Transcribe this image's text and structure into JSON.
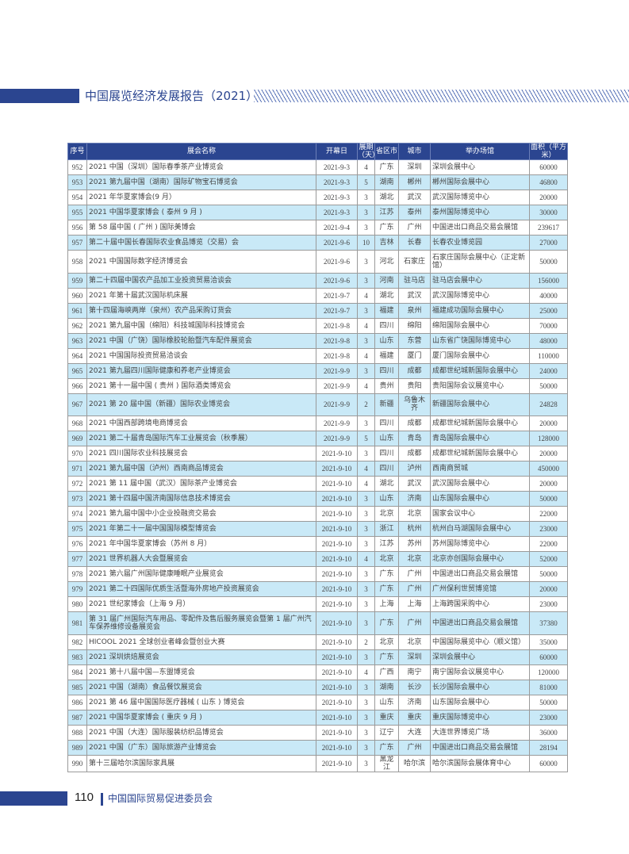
{
  "header": {
    "title": "中国展览经济发展报告（2021）"
  },
  "footer": {
    "page_number": "110",
    "org": "中国国际贸易促进委员会"
  },
  "colors": {
    "brand": "#2b4590",
    "row_alt": "#c9e9f7"
  },
  "table": {
    "columns": [
      "序号",
      "展会名称",
      "开幕日",
      "展期（天）",
      "省区市",
      "城市",
      "举办场馆",
      "面积（平方米）"
    ],
    "rows": [
      [
        "952",
        "2021 中国（深圳）国际春季茶产业博览会",
        "2021-9-3",
        "4",
        "广东",
        "深圳",
        "深圳会展中心",
        "60000"
      ],
      [
        "953",
        "2021 第九届中国（湖南）国际矿物宝石博览会",
        "2021-9-3",
        "5",
        "湖南",
        "郴州",
        "郴州国际会展中心",
        "46800"
      ],
      [
        "954",
        "2021 年华夏家博会(9 月）",
        "2021-9-3",
        "3",
        "湖北",
        "武汉",
        "武汉国际博览中心",
        "20000"
      ],
      [
        "955",
        "2021 中国华夏家博会 ( 泰州 9 月 )",
        "2021-9-3",
        "3",
        "江苏",
        "泰州",
        "泰州国际博览中心",
        "30000"
      ],
      [
        "956",
        "第 58 届中国 ( 广州 ) 国际美博会",
        "2021-9-4",
        "3",
        "广东",
        "广州",
        "中国进出口商品交易会展馆",
        "239617"
      ],
      [
        "957",
        "第二十届中国长春国际农业食品博览（交易）会",
        "2021-9-6",
        "10",
        "吉林",
        "长春",
        "长春农业博览园",
        "27000"
      ],
      [
        "958",
        "2021 中国国际数字经济博览会",
        "2021-9-6",
        "3",
        "河北",
        "石家庄",
        "石家庄国际会展中心（正定新馆）",
        "50000"
      ],
      [
        "959",
        "第二十四届中国农产品加工业投资贸易洽谈会",
        "2021-9-6",
        "3",
        "河南",
        "驻马店",
        "驻马店会展中心",
        "156000"
      ],
      [
        "960",
        "2021 年第十届武汉国际机床展",
        "2021-9-7",
        "4",
        "湖北",
        "武汉",
        "武汉国际博览中心",
        "40000"
      ],
      [
        "961",
        "第十四届海峡两岸（泉州）农产品采购订货会",
        "2021-9-7",
        "3",
        "福建",
        "泉州",
        "福建成功国际会展中心",
        "25000"
      ],
      [
        "962",
        "2021 第九届中国（绵阳）科技城国际科技博览会",
        "2021-9-8",
        "4",
        "四川",
        "绵阳",
        "绵阳国际会展中心",
        "70000"
      ],
      [
        "963",
        "2021 中国（广饶）国际橡胶轮胎暨汽车配件展览会",
        "2021-9-8",
        "3",
        "山东",
        "东营",
        "山东省广饶国际博览中心",
        "48000"
      ],
      [
        "964",
        "2021 中国国际投资贸易洽谈会",
        "2021-9-8",
        "4",
        "福建",
        "厦门",
        "厦门国际会展中心",
        "110000"
      ],
      [
        "965",
        "2021 第九届四川国际健康和养老产业博览会",
        "2021-9-9",
        "3",
        "四川",
        "成都",
        "成都世纪城新国际会展中心",
        "24000"
      ],
      [
        "966",
        "2021 第十一届中国 ( 贵州 ) 国际酒类博览会",
        "2021-9-9",
        "4",
        "贵州",
        "贵阳",
        "贵阳国际会议展览中心",
        "50000"
      ],
      [
        "967",
        "2021 第 20 届中国（新疆）国际农业博览会",
        "2021-9-9",
        "2",
        "新疆",
        "乌鲁木齐",
        "新疆国际会展中心",
        "24828"
      ],
      [
        "968",
        "2021 中国西部跨境电商博览会",
        "2021-9-9",
        "3",
        "四川",
        "成都",
        "成都世纪城新国际会展中心",
        "20000"
      ],
      [
        "969",
        "2021 第二十届青岛国际汽车工业展览会（秋季展）",
        "2021-9-9",
        "5",
        "山东",
        "青岛",
        "青岛国际会展中心",
        "128000"
      ],
      [
        "970",
        "2021 四川国际农业科技展览会",
        "2021-9-10",
        "3",
        "四川",
        "成都",
        "成都世纪城新国际会展中心",
        "20000"
      ],
      [
        "971",
        "2021 第九届中国（泸州）西南商品博览会",
        "2021-9-10",
        "4",
        "四川",
        "泸州",
        "西南商贸城",
        "450000"
      ],
      [
        "972",
        "2021 第 11 届中国（武汉）国际茶产业博览会",
        "2021-9-10",
        "4",
        "湖北",
        "武汉",
        "武汉国际会展中心",
        "20000"
      ],
      [
        "973",
        "2021 第十四届中国济南国际信息技术博览会",
        "2021-9-10",
        "3",
        "山东",
        "济南",
        "山东国际会展中心",
        "50000"
      ],
      [
        "974",
        "2021 第九届中国中小企业投融资交易会",
        "2021-9-10",
        "3",
        "北京",
        "北京",
        "国家会议中心",
        "22000"
      ],
      [
        "975",
        "2021 年第二十一届中国国际模型博览会",
        "2021-9-10",
        "3",
        "浙江",
        "杭州",
        "杭州白马湖国际会展中心",
        "23000"
      ],
      [
        "976",
        "2021 年中国华夏家博会（苏州 8 月）",
        "2021-9-10",
        "3",
        "江苏",
        "苏州",
        "苏州国际博览中心",
        "22000"
      ],
      [
        "977",
        "2021 世界机器人大会暨展览会",
        "2021-9-10",
        "4",
        "北京",
        "北京",
        "北京亦创国际会展中心",
        "52000"
      ],
      [
        "978",
        "2021 第六届广州国际健康睡眠产业展览会",
        "2021-9-10",
        "3",
        "广东",
        "广州",
        "中国进出口商品交易会展馆",
        "50000"
      ],
      [
        "979",
        "2021 第二十四国际优质生活暨海外房地产投资展览会",
        "2021-9-10",
        "3",
        "广东",
        "广州",
        "广州保利世贸博览馆",
        "20000"
      ],
      [
        "980",
        "2021 世纪家博会（上海 9 月）",
        "2021-9-10",
        "3",
        "上海",
        "上海",
        "上海跨国采购中心",
        "23000"
      ],
      [
        "981",
        "第 31 届广州国际汽车用品、零配件及售后服务展览会暨第 1 届广州汽车保养维修设备展览会",
        "2021-9-10",
        "3",
        "广东",
        "广州",
        "中国进出口商品交易会展馆",
        "37380"
      ],
      [
        "982",
        "HICOOL 2021 全球创业者峰会暨创业大赛",
        "2021-9-10",
        "2",
        "北京",
        "北京",
        "中国国际展览中心（顺义馆）",
        "35000"
      ],
      [
        "983",
        "2021 深圳烘焙展览会",
        "2021-9-10",
        "3",
        "广东",
        "深圳",
        "深圳会展中心",
        "60000"
      ],
      [
        "984",
        "2021 第十八届中国—东盟博览会",
        "2021-9-10",
        "4",
        "广西",
        "南宁",
        "南宁国际会议展览中心",
        "120000"
      ],
      [
        "985",
        "2021 中国（湖南）食品餐饮展览会",
        "2021-9-10",
        "3",
        "湖南",
        "长沙",
        "长沙国际会展中心",
        "81000"
      ],
      [
        "986",
        "2021 第 46 届中国国际医疗器械 ( 山东 ) 博览会",
        "2021-9-10",
        "3",
        "山东",
        "济南",
        "山东国际会展中心",
        "50000"
      ],
      [
        "987",
        "2021 中国华夏家博会 ( 重庆 9 月 )",
        "2021-9-10",
        "3",
        "重庆",
        "重庆",
        "重庆国际博览中心",
        "23000"
      ],
      [
        "988",
        "2021 中国（大连）国际服装纺织品博览会",
        "2021-9-10",
        "3",
        "辽宁",
        "大连",
        "大连世界博览广场",
        "36000"
      ],
      [
        "989",
        "2021 中国（广东）国际旅游产业博览会",
        "2021-9-10",
        "3",
        "广东",
        "广州",
        "中国进出口商品交易会展馆",
        "28194"
      ],
      [
        "990",
        "第十三届哈尔滨国际家具展",
        "2021-9-10",
        "3",
        "黑龙江",
        "哈尔滨",
        "哈尔滨国际会展体育中心",
        "60000"
      ]
    ]
  }
}
